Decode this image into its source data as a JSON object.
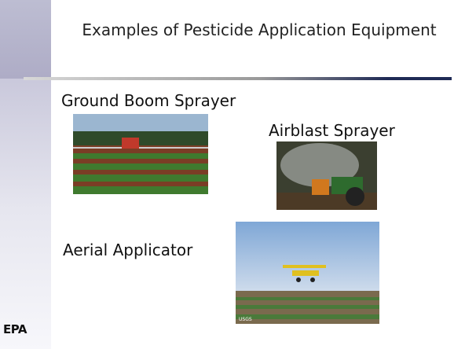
{
  "header": {
    "title": "Examples of Pesticide Application Equipment"
  },
  "items": [
    {
      "label": "Ground Boom Sprayer"
    },
    {
      "label": "Airblast Sprayer"
    },
    {
      "label": "Aerial Applicator",
      "credit": "USGS"
    }
  ],
  "footer": {
    "logo": "EPA"
  }
}
